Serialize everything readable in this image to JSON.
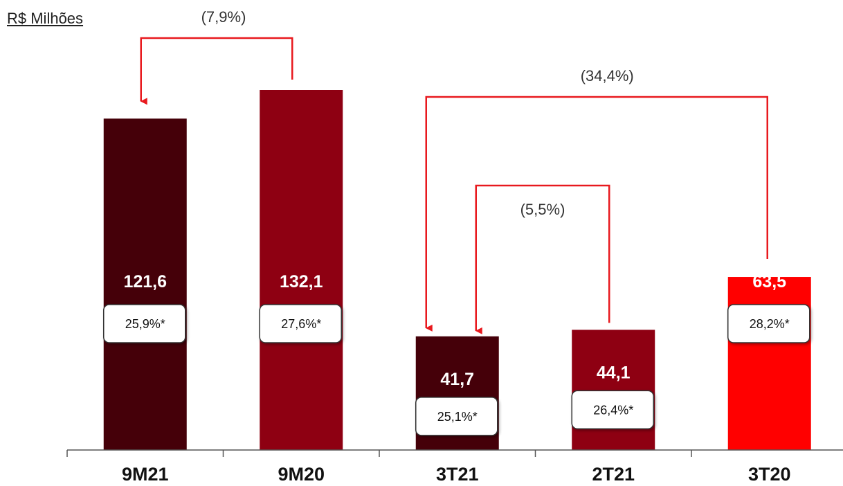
{
  "unit_label": "R$ Milhões",
  "chart_data": {
    "type": "bar",
    "categories": [
      "9M21",
      "9M20",
      "3T21",
      "2T21",
      "3T20"
    ],
    "values": [
      121.6,
      132.1,
      41.7,
      44.1,
      63.5
    ],
    "value_labels": [
      "121,6",
      "132,1",
      "41,7",
      "44,1",
      "63,5"
    ],
    "margin_labels": [
      "25,9%*",
      "27,6%*",
      "25,1%*",
      "26,4%*",
      "28,2%*"
    ],
    "colors": [
      "#450009",
      "#8e0012",
      "#450009",
      "#8e0012",
      "#ff0000"
    ],
    "comparisons": [
      {
        "from": "9M20",
        "to": "9M21",
        "label": "(7,9%)"
      },
      {
        "from": "3T20",
        "to": "3T21",
        "label": "(34,4%)"
      },
      {
        "from": "2T21",
        "to": "3T21",
        "label": "(5,5%)"
      }
    ],
    "arrow_color": "#e8191e"
  }
}
